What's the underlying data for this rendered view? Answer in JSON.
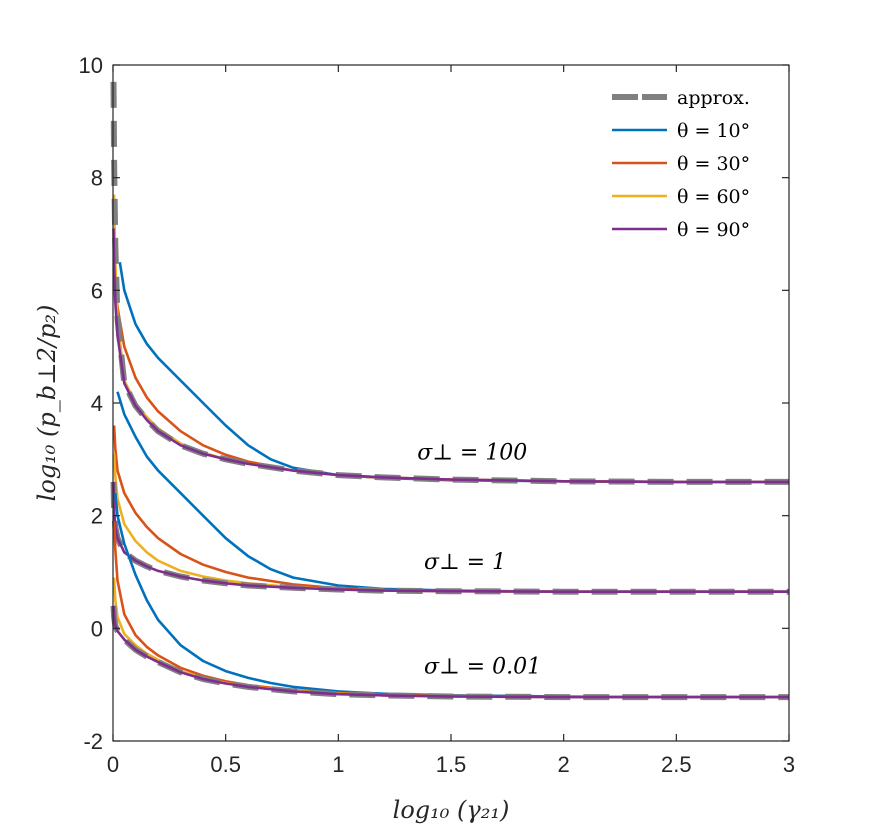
{
  "chart_data": {
    "type": "line",
    "xlabel": "log₁₀ (γ₂₁)",
    "ylabel": "log₁₀ (p_b⊥2/p₂)",
    "xlim": [
      0,
      3
    ],
    "ylim": [
      -2,
      10
    ],
    "xticks": [
      0,
      0.5,
      1,
      1.5,
      2,
      2.5,
      3
    ],
    "xtick_labels": [
      "0",
      "0.5",
      "1",
      "1.5",
      "2",
      "2.5",
      "3"
    ],
    "yticks": [
      -2,
      0,
      2,
      4,
      6,
      8,
      10
    ],
    "ytick_labels": [
      "-2",
      "0",
      "2",
      "4",
      "6",
      "8",
      "10"
    ],
    "grid": false,
    "legend_position": "top-right",
    "legend": [
      {
        "label": "approx.",
        "color": "#808080",
        "dashed": true
      },
      {
        "label": "θ = 10°",
        "color": "#0072BD",
        "dashed": false
      },
      {
        "label": "θ = 30°",
        "color": "#D95319",
        "dashed": false
      },
      {
        "label": "θ = 60°",
        "color": "#EDB120",
        "dashed": false
      },
      {
        "label": "θ = 90°",
        "color": "#7E2F8E",
        "dashed": false
      }
    ],
    "annotations": [
      {
        "text": "σ⊥ = 100",
        "x": 1.35,
        "y": 3.0
      },
      {
        "text": "σ⊥ = 1",
        "x": 1.38,
        "y": 1.05
      },
      {
        "text": "σ⊥ = 0.01",
        "x": 1.38,
        "y": -0.8
      }
    ],
    "groups": [
      {
        "sigma": "100",
        "series": [
          {
            "name": "approx.",
            "color": "#808080",
            "dashed": true,
            "x": [
              0.002,
              0.005,
              0.01,
              0.02,
              0.05,
              0.1,
              0.15,
              0.2,
              0.3,
              0.4,
              0.5,
              0.6,
              0.8,
              1.0,
              1.2,
              1.5,
              2.0,
              2.5,
              3.0
            ],
            "y": [
              9.7,
              8.3,
              6.8,
              5.5,
              4.35,
              3.95,
              3.7,
              3.5,
              3.25,
              3.1,
              3.0,
              2.92,
              2.8,
              2.72,
              2.68,
              2.64,
              2.61,
              2.6,
              2.6
            ]
          },
          {
            "name": "θ = 10°",
            "color": "#0072BD",
            "dashed": false,
            "x": [
              0.03,
              0.05,
              0.1,
              0.15,
              0.2,
              0.3,
              0.4,
              0.5,
              0.6,
              0.7,
              0.8,
              1.0,
              1.2,
              1.5,
              2.0,
              2.5,
              3.0
            ],
            "y": [
              6.5,
              6.0,
              5.4,
              5.05,
              4.8,
              4.4,
              4.0,
              3.6,
              3.25,
              3.0,
              2.85,
              2.72,
              2.67,
              2.63,
              2.61,
              2.6,
              2.6
            ]
          },
          {
            "name": "θ = 30°",
            "color": "#D95319",
            "dashed": false,
            "x": [
              0.01,
              0.02,
              0.05,
              0.1,
              0.15,
              0.2,
              0.3,
              0.4,
              0.5,
              0.6,
              0.8,
              1.0,
              1.2,
              1.5,
              2.0,
              2.5,
              3.0
            ],
            "y": [
              6.2,
              5.7,
              5.0,
              4.45,
              4.1,
              3.85,
              3.5,
              3.25,
              3.08,
              2.96,
              2.8,
              2.72,
              2.67,
              2.64,
              2.61,
              2.6,
              2.6
            ]
          },
          {
            "name": "θ = 60°",
            "color": "#EDB120",
            "dashed": false,
            "x": [
              0.005,
              0.01,
              0.02,
              0.05,
              0.1,
              0.15,
              0.2,
              0.3,
              0.4,
              0.5,
              0.6,
              0.8,
              1.0,
              1.2,
              1.5,
              2.0,
              2.5,
              3.0
            ],
            "y": [
              7.7,
              6.5,
              5.5,
              4.4,
              4.0,
              3.75,
              3.55,
              3.28,
              3.12,
              3.0,
              2.92,
              2.8,
              2.72,
              2.68,
              2.64,
              2.61,
              2.6,
              2.6
            ]
          },
          {
            "name": "θ = 90°",
            "color": "#7E2F8E",
            "dashed": false,
            "x": [
              0.002,
              0.005,
              0.01,
              0.02,
              0.05,
              0.1,
              0.15,
              0.2,
              0.3,
              0.4,
              0.5,
              0.6,
              0.8,
              1.0,
              1.2,
              1.5,
              2.0,
              2.5,
              3.0
            ],
            "y": [
              7.1,
              6.5,
              5.8,
              5.2,
              4.35,
              3.95,
              3.7,
              3.5,
              3.25,
              3.1,
              3.0,
              2.92,
              2.8,
              2.72,
              2.68,
              2.64,
              2.61,
              2.6,
              2.6
            ]
          }
        ]
      },
      {
        "sigma": "1",
        "series": [
          {
            "name": "approx.",
            "color": "#808080",
            "dashed": true,
            "x": [
              0.002,
              0.005,
              0.01,
              0.02,
              0.05,
              0.1,
              0.15,
              0.2,
              0.3,
              0.4,
              0.5,
              0.6,
              0.8,
              1.0,
              1.2,
              1.5,
              2.0,
              2.5,
              3.0
            ],
            "y": [
              2.6,
              2.1,
              1.8,
              1.6,
              1.35,
              1.2,
              1.1,
              1.02,
              0.92,
              0.85,
              0.8,
              0.76,
              0.72,
              0.69,
              0.67,
              0.66,
              0.65,
              0.65,
              0.65
            ]
          },
          {
            "name": "θ = 10°",
            "color": "#0072BD",
            "dashed": false,
            "x": [
              0.02,
              0.05,
              0.1,
              0.15,
              0.2,
              0.3,
              0.4,
              0.5,
              0.6,
              0.7,
              0.8,
              1.0,
              1.2,
              1.5,
              2.0,
              2.5,
              3.0
            ],
            "y": [
              4.2,
              3.8,
              3.4,
              3.05,
              2.8,
              2.4,
              2.0,
              1.6,
              1.28,
              1.05,
              0.9,
              0.76,
              0.7,
              0.67,
              0.65,
              0.65,
              0.65
            ]
          },
          {
            "name": "θ = 30°",
            "color": "#D95319",
            "dashed": false,
            "x": [
              0.005,
              0.01,
              0.02,
              0.05,
              0.1,
              0.15,
              0.2,
              0.3,
              0.4,
              0.5,
              0.6,
              0.8,
              1.0,
              1.2,
              1.5,
              2.0,
              2.5,
              3.0
            ],
            "y": [
              3.6,
              3.2,
              2.8,
              2.4,
              2.05,
              1.8,
              1.6,
              1.32,
              1.13,
              1.0,
              0.9,
              0.78,
              0.71,
              0.68,
              0.66,
              0.65,
              0.65,
              0.65
            ]
          },
          {
            "name": "θ = 60°",
            "color": "#EDB120",
            "dashed": false,
            "x": [
              0.005,
              0.01,
              0.02,
              0.05,
              0.1,
              0.15,
              0.2,
              0.3,
              0.4,
              0.5,
              0.6,
              0.8,
              1.0,
              1.2,
              1.5,
              2.0,
              2.5,
              3.0
            ],
            "y": [
              3.1,
              2.7,
              2.3,
              1.85,
              1.55,
              1.35,
              1.2,
              1.02,
              0.92,
              0.85,
              0.8,
              0.73,
              0.69,
              0.67,
              0.66,
              0.65,
              0.65,
              0.65
            ]
          },
          {
            "name": "θ = 90°",
            "color": "#7E2F8E",
            "dashed": false,
            "x": [
              0.002,
              0.005,
              0.01,
              0.02,
              0.05,
              0.1,
              0.15,
              0.2,
              0.3,
              0.4,
              0.5,
              0.6,
              0.8,
              1.0,
              1.2,
              1.5,
              2.0,
              2.5,
              3.0
            ],
            "y": [
              2.6,
              2.1,
              1.8,
              1.6,
              1.35,
              1.2,
              1.1,
              1.02,
              0.92,
              0.85,
              0.8,
              0.76,
              0.72,
              0.69,
              0.67,
              0.66,
              0.65,
              0.65,
              0.65
            ]
          }
        ]
      },
      {
        "sigma": "0.01",
        "series": [
          {
            "name": "approx.",
            "color": "#808080",
            "dashed": true,
            "x": [
              0.002,
              0.005,
              0.01,
              0.02,
              0.05,
              0.1,
              0.15,
              0.2,
              0.3,
              0.4,
              0.5,
              0.6,
              0.8,
              1.0,
              1.2,
              1.5,
              2.0,
              2.5,
              3.0
            ],
            "y": [
              0.4,
              0.2,
              0.05,
              -0.05,
              -0.2,
              -0.38,
              -0.5,
              -0.6,
              -0.78,
              -0.9,
              -0.98,
              -1.04,
              -1.12,
              -1.17,
              -1.19,
              -1.21,
              -1.22,
              -1.22,
              -1.22
            ]
          },
          {
            "name": "θ = 10°",
            "color": "#0072BD",
            "dashed": false,
            "x": [
              0.01,
              0.02,
              0.05,
              0.1,
              0.15,
              0.2,
              0.3,
              0.4,
              0.5,
              0.6,
              0.7,
              0.8,
              1.0,
              1.2,
              1.5,
              2.0,
              2.5,
              3.0
            ],
            "y": [
              2.4,
              2.0,
              1.5,
              0.95,
              0.5,
              0.15,
              -0.3,
              -0.58,
              -0.76,
              -0.88,
              -0.97,
              -1.04,
              -1.12,
              -1.16,
              -1.19,
              -1.21,
              -1.22,
              -1.22
            ]
          },
          {
            "name": "θ = 30°",
            "color": "#D95319",
            "dashed": false,
            "x": [
              0.005,
              0.01,
              0.02,
              0.05,
              0.1,
              0.15,
              0.2,
              0.3,
              0.4,
              0.5,
              0.6,
              0.8,
              1.0,
              1.2,
              1.5,
              2.0,
              2.5,
              3.0
            ],
            "y": [
              1.9,
              1.4,
              0.85,
              0.25,
              -0.12,
              -0.33,
              -0.48,
              -0.7,
              -0.84,
              -0.94,
              -1.01,
              -1.1,
              -1.15,
              -1.18,
              -1.2,
              -1.22,
              -1.22,
              -1.22
            ]
          },
          {
            "name": "θ = 60°",
            "color": "#EDB120",
            "dashed": false,
            "x": [
              0.005,
              0.01,
              0.02,
              0.05,
              0.1,
              0.15,
              0.2,
              0.3,
              0.4,
              0.5,
              0.6,
              0.8,
              1.0,
              1.2,
              1.5,
              2.0,
              2.5,
              3.0
            ],
            "y": [
              0.9,
              0.5,
              0.2,
              -0.1,
              -0.3,
              -0.45,
              -0.56,
              -0.76,
              -0.88,
              -0.97,
              -1.03,
              -1.11,
              -1.16,
              -1.19,
              -1.21,
              -1.22,
              -1.22,
              -1.22
            ]
          },
          {
            "name": "θ = 90°",
            "color": "#7E2F8E",
            "dashed": false,
            "x": [
              0.002,
              0.005,
              0.01,
              0.02,
              0.05,
              0.1,
              0.15,
              0.2,
              0.3,
              0.4,
              0.5,
              0.6,
              0.8,
              1.0,
              1.2,
              1.5,
              2.0,
              2.5,
              3.0
            ],
            "y": [
              0.4,
              0.2,
              0.05,
              -0.05,
              -0.2,
              -0.38,
              -0.5,
              -0.6,
              -0.78,
              -0.9,
              -0.98,
              -1.04,
              -1.12,
              -1.17,
              -1.19,
              -1.21,
              -1.22,
              -1.22,
              -1.22
            ]
          }
        ]
      }
    ]
  }
}
